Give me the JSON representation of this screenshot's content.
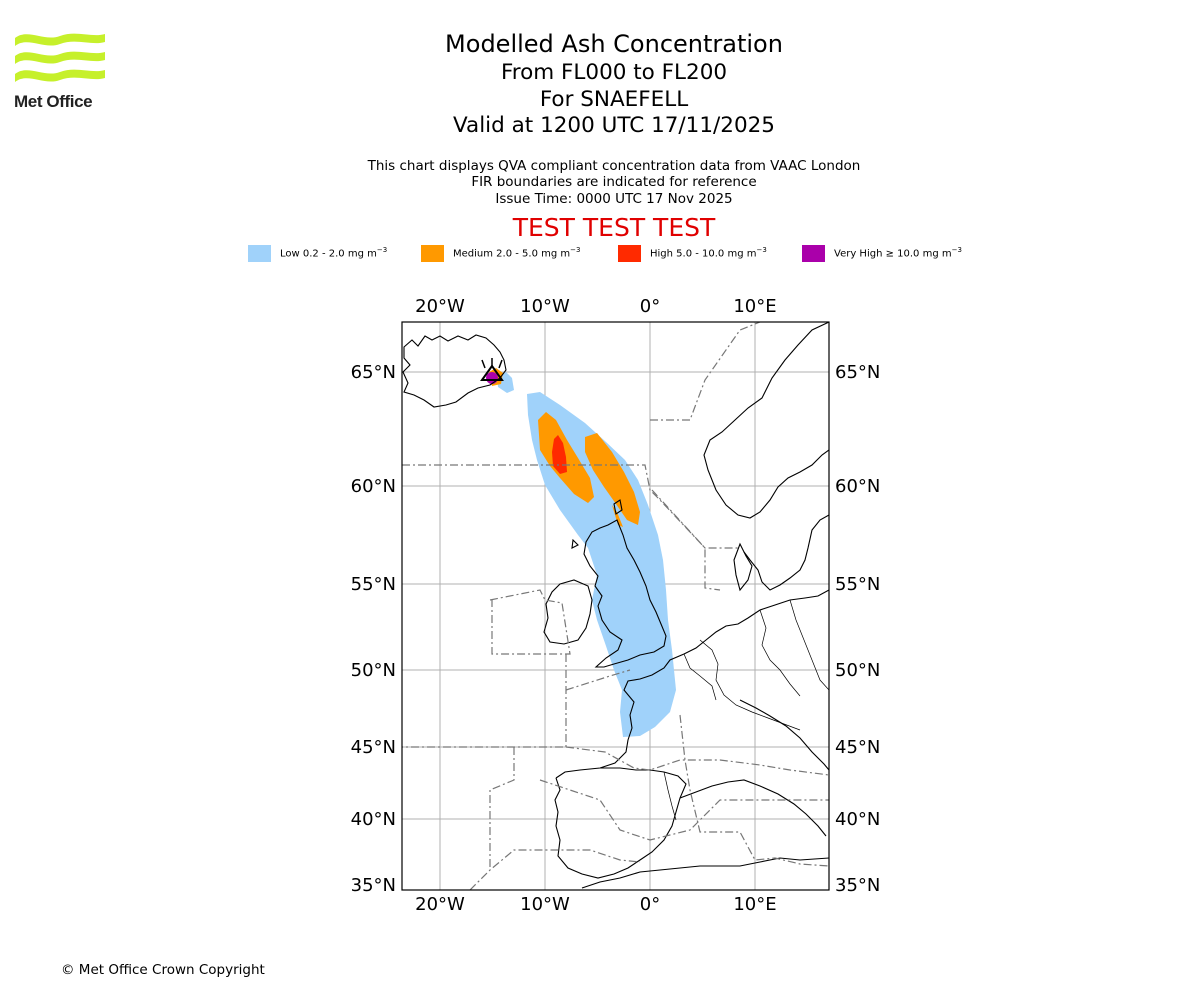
{
  "brand": {
    "logo_text": "Met Office",
    "logo_color": "#c6f02b"
  },
  "header": {
    "title": "Modelled Ash Concentration",
    "levels": "From FL000 to FL200",
    "volcano": "For SNAEFELL",
    "valid": "Valid at 1200 UTC 17/11/2025"
  },
  "subtitle": {
    "line1": "This chart displays QVA compliant concentration data from VAAC London",
    "line2": "FIR boundaries are indicated for reference",
    "line3": "Issue Time: 0000 UTC 17 Nov 2025"
  },
  "test_banner": "TEST TEST TEST",
  "legend": [
    {
      "label": "Low 0.2 - 2.0 mg m",
      "color": "#a0d2fa"
    },
    {
      "label": "Medium 2.0 - 5.0 mg m",
      "color": "#ff9900"
    },
    {
      "label": "High 5.0 - 10.0 mg m",
      "color": "#ff2a00"
    },
    {
      "label": "Very High ≥ 10.0 mg m",
      "color": "#aa00aa"
    }
  ],
  "legend_unit_exponent": "−3",
  "map": {
    "lon_ticks": [
      "20°W",
      "10°W",
      "0°",
      "10°E"
    ],
    "lat_ticks": [
      "65°N",
      "60°N",
      "55°N",
      "50°N",
      "45°N",
      "40°N",
      "35°N"
    ]
  },
  "footer": {
    "copyright": "© Met Office Crown Copyright"
  }
}
